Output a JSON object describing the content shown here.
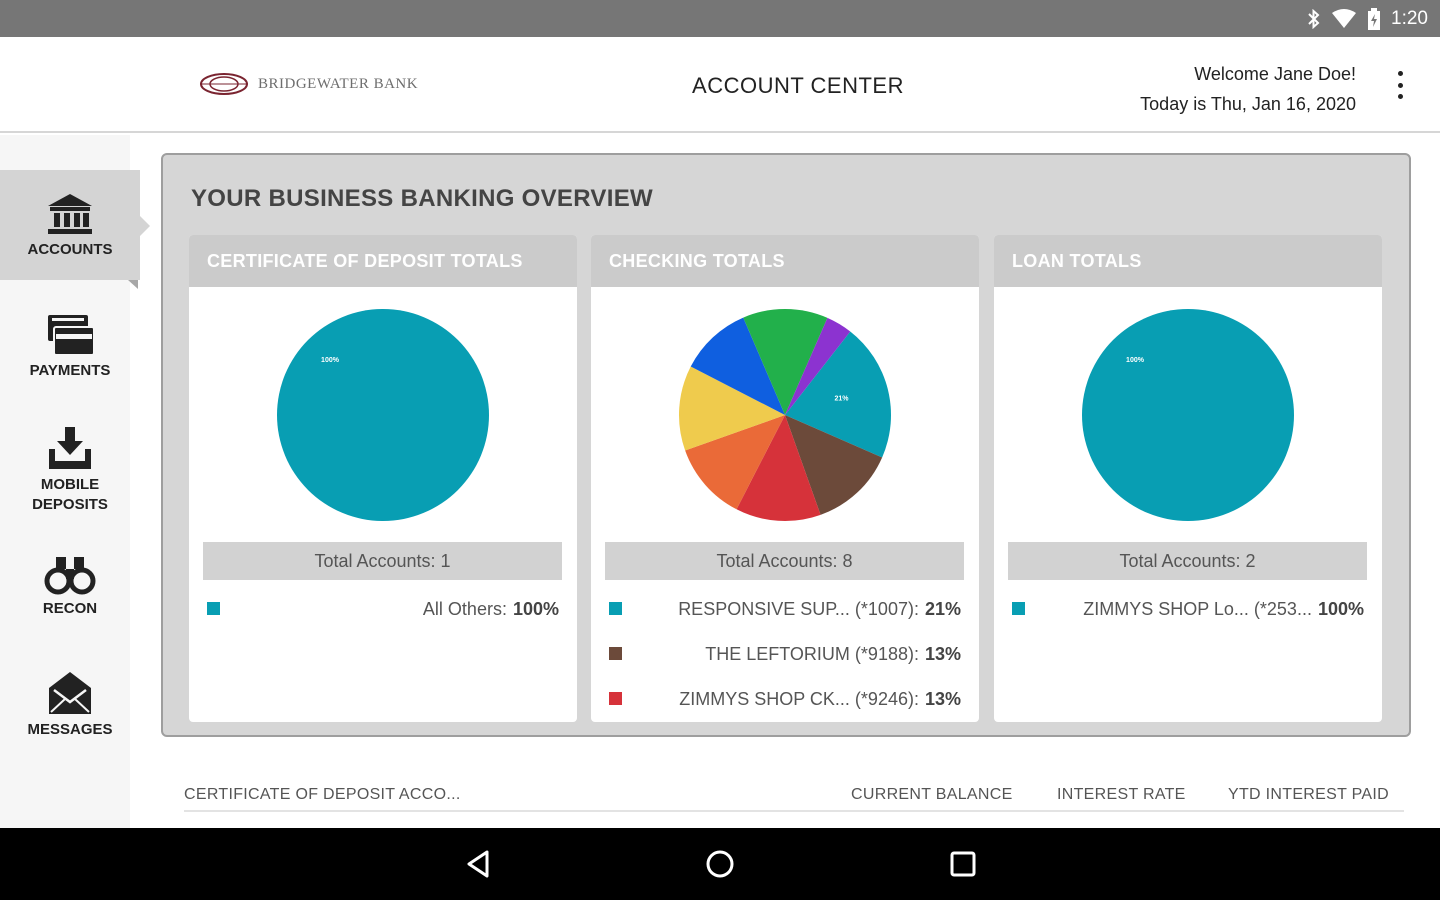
{
  "status_bar": {
    "time": "1:20",
    "icons": [
      "bluetooth-icon",
      "wifi-icon",
      "battery-icon"
    ]
  },
  "header": {
    "logo_text": "BRIDGEWATER BANK",
    "title": "ACCOUNT CENTER",
    "welcome": "Welcome Jane Doe!",
    "date_line": "Today is Thu, Jan 16, 2020",
    "menu_icon": "more-vertical-icon"
  },
  "sidebar": {
    "items": [
      {
        "label": "ACCOUNTS",
        "icon": "bank-icon",
        "active": true
      },
      {
        "label": "PAYMENTS",
        "icon": "credit-card-icon",
        "active": false
      },
      {
        "label": "MOBILE DEPOSITS",
        "icon": "download-tray-icon",
        "active": false
      },
      {
        "label": "RECON",
        "icon": "binoculars-icon",
        "active": false
      },
      {
        "label": "MESSAGES",
        "icon": "envelope-icon",
        "active": false
      }
    ]
  },
  "overview": {
    "title": "YOUR BUSINESS BANKING OVERVIEW"
  },
  "colors": {
    "teal": "#089eb3",
    "brown": "#6c4a3a",
    "red": "#d6323a",
    "orange": "#ea6a38",
    "yellow": "#efcb4d",
    "blue": "#0f5fe0",
    "green": "#22b04b",
    "purple": "#8c33d0"
  },
  "cards": [
    {
      "title": "CERTIFICATE OF DEPOSIT TOTALS",
      "total": "Total Accounts: 1",
      "legend": [
        {
          "name": "All Others:",
          "pct": "100%",
          "color": "#089eb3"
        }
      ]
    },
    {
      "title": "CHECKING TOTALS",
      "total": "Total Accounts: 8",
      "legend": [
        {
          "name": "RESPONSIVE SUP...  (*1007):",
          "pct": "21%",
          "color": "#089eb3"
        },
        {
          "name": "THE LEFTORIUM (*9188):",
          "pct": "13%",
          "color": "#6c4a3a"
        },
        {
          "name": "ZIMMYS SHOP CK...  (*9246):",
          "pct": "13%",
          "color": "#d6323a"
        }
      ]
    },
    {
      "title": "LOAN TOTALS",
      "total": "Total Accounts: 2",
      "legend": [
        {
          "name": "ZIMMYS SHOP Lo...  (*253...",
          "pct": "100%",
          "color": "#089eb3"
        }
      ]
    }
  ],
  "chart_data": [
    {
      "type": "pie",
      "title": "CERTIFICATE OF DEPOSIT TOTALS",
      "slices": [
        {
          "label": "All Others",
          "value": 100,
          "color": "#089eb3",
          "data_label": "100%"
        }
      ]
    },
    {
      "type": "pie",
      "title": "CHECKING TOTALS",
      "slices": [
        {
          "label": "RESPONSIVE SUP... (*1007)",
          "value": 21,
          "color": "#089eb3",
          "data_label": "21%"
        },
        {
          "label": "THE LEFTORIUM (*9188)",
          "value": 13,
          "color": "#6c4a3a"
        },
        {
          "label": "ZIMMYS SHOP CK... (*9246)",
          "value": 13,
          "color": "#d6323a"
        },
        {
          "value": 12,
          "color": "#ea6a38"
        },
        {
          "value": 13,
          "color": "#efcb4d"
        },
        {
          "value": 11,
          "color": "#0f5fe0"
        },
        {
          "value": 13,
          "color": "#22b04b"
        },
        {
          "value": 4,
          "color": "#8c33d0"
        }
      ]
    },
    {
      "type": "pie",
      "title": "LOAN TOTALS",
      "slices": [
        {
          "label": "ZIMMYS SHOP Lo... (*253...",
          "value": 100,
          "color": "#089eb3",
          "data_label": "100%"
        }
      ]
    }
  ],
  "cd_table": {
    "columns": [
      "CERTIFICATE OF DEPOSIT ACCO...",
      "CURRENT BALANCE",
      "INTEREST RATE",
      "YTD INTEREST PAID"
    ]
  },
  "nav_bar": {
    "buttons": [
      "back-icon",
      "home-icon",
      "recents-icon"
    ]
  }
}
